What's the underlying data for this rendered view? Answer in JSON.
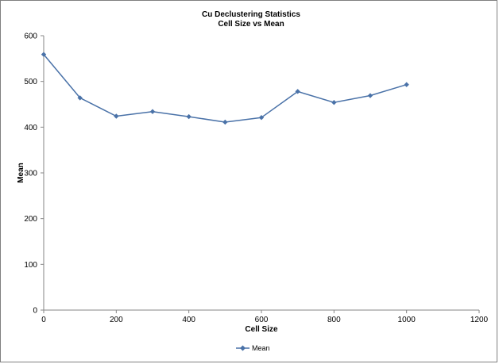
{
  "chart_data": {
    "type": "line",
    "title": "Cu Declustering Statistics",
    "subtitle": "Cell Size vs Mean",
    "xlabel": "Cell Size",
    "ylabel": "Mean",
    "xlim": [
      0,
      1200
    ],
    "ylim": [
      0,
      600
    ],
    "xticks": [
      0,
      200,
      400,
      600,
      800,
      1000,
      1200
    ],
    "yticks": [
      0,
      100,
      200,
      300,
      400,
      500,
      600
    ],
    "grid": false,
    "legend_position": "bottom",
    "series": [
      {
        "name": "Mean",
        "color": "#4a72a8",
        "marker": "diamond",
        "x": [
          0,
          100,
          200,
          300,
          400,
          500,
          600,
          700,
          800,
          900,
          1000
        ],
        "y": [
          559,
          464,
          424,
          434,
          423,
          411,
          421,
          478,
          454,
          469,
          493
        ]
      }
    ]
  }
}
